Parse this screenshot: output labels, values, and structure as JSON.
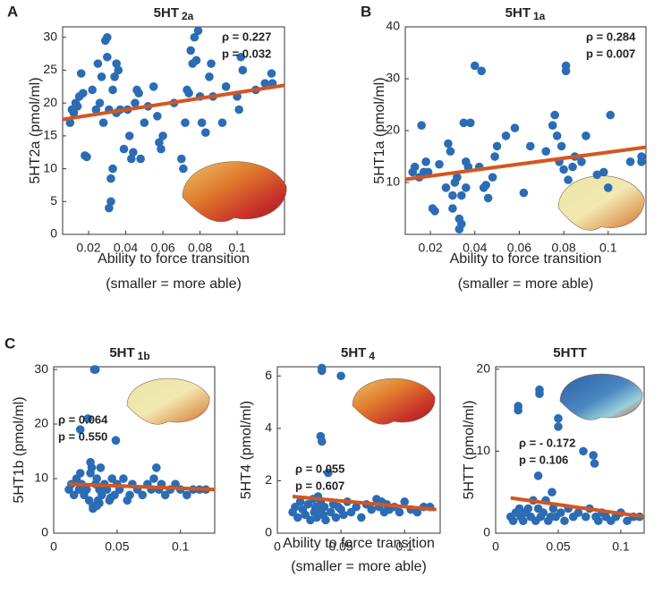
{
  "chart_data": [
    {
      "type": "scatter",
      "panel": "A",
      "title": "5HT",
      "title_sub": "2a",
      "xlabel": [
        "Ability to force transition",
        "(smaller = more able)"
      ],
      "ylabel": "5HT2a (pmol/ml)",
      "annotations": [
        "ρ = 0.227",
        "p = 0.032"
      ],
      "xlim": [
        0.006,
        0.1255
      ],
      "ylim": [
        0,
        31.6
      ],
      "xticks": [
        0.02,
        0.04,
        0.06,
        0.08,
        0.1
      ],
      "yticks": [
        0,
        5,
        10,
        15,
        20,
        25,
        30
      ],
      "points": {
        "color": "#2b6cb5",
        "x": [
          0.01,
          0.011,
          0.012,
          0.013,
          0.014,
          0.015,
          0.016,
          0.017,
          0.018,
          0.019,
          0.022,
          0.024,
          0.025,
          0.026,
          0.027,
          0.028,
          0.029,
          0.03,
          0.03,
          0.031,
          0.031,
          0.032,
          0.032,
          0.033,
          0.033,
          0.034,
          0.035,
          0.035,
          0.036,
          0.037,
          0.039,
          0.041,
          0.042,
          0.043,
          0.044,
          0.045,
          0.046,
          0.047,
          0.048,
          0.05,
          0.052,
          0.055,
          0.057,
          0.058,
          0.059,
          0.06,
          0.066,
          0.07,
          0.071,
          0.072,
          0.073,
          0.074,
          0.075,
          0.076,
          0.077,
          0.078,
          0.079,
          0.08,
          0.081,
          0.083,
          0.085,
          0.086,
          0.087,
          0.092,
          0.094,
          0.1,
          0.101,
          0.102,
          0.103,
          0.11,
          0.115,
          0.1185,
          0.119
        ],
        "y": [
          17,
          19,
          18.5,
          20,
          19.5,
          21,
          24.5,
          21.5,
          12,
          11.8,
          22,
          19,
          26,
          20,
          24,
          17,
          29.5,
          30,
          27,
          19,
          4,
          5,
          8.5,
          10,
          22,
          24,
          18.5,
          26,
          25,
          19,
          13,
          19,
          15,
          11.5,
          12.5,
          20,
          22,
          21.5,
          11.5,
          17,
          19.5,
          22.5,
          18,
          14,
          13,
          15,
          20,
          11.5,
          10,
          17,
          22,
          21.5,
          28,
          26,
          30,
          26.5,
          31,
          21,
          17,
          15.5,
          24,
          26,
          21,
          17,
          22.5,
          21,
          19,
          27,
          25,
          22,
          23,
          24.5,
          23
        ]
      },
      "fit": {
        "color": "#d4561f",
        "x": [
          0.006,
          0.1255
        ],
        "y": [
          17.5,
          22.7
        ]
      }
    },
    {
      "type": "scatter",
      "panel": "B",
      "title": "5HT",
      "title_sub": "1a",
      "xlabel": [
        "Ability to force transition",
        "(smaller = more able)"
      ],
      "ylabel": "5HT1a (pmol/ml)",
      "annotations": [
        "ρ = 0.284",
        "p = 0.007"
      ],
      "xlim": [
        0.0087,
        0.117
      ],
      "ylim": [
        0,
        40
      ],
      "xticks": [
        0.02,
        0.04,
        0.06,
        0.08,
        0.1
      ],
      "yticks": [
        10,
        20,
        30,
        40
      ],
      "points": {
        "color": "#2b6cb5",
        "x": [
          0.012,
          0.013,
          0.015,
          0.016,
          0.017,
          0.018,
          0.019,
          0.021,
          0.022,
          0.024,
          0.027,
          0.028,
          0.029,
          0.03,
          0.03,
          0.031,
          0.032,
          0.033,
          0.033,
          0.034,
          0.034,
          0.035,
          0.036,
          0.036,
          0.037,
          0.038,
          0.04,
          0.042,
          0.043,
          0.044,
          0.045,
          0.046,
          0.048,
          0.049,
          0.05,
          0.054,
          0.058,
          0.062,
          0.065,
          0.072,
          0.075,
          0.076,
          0.077,
          0.078,
          0.079,
          0.08,
          0.081,
          0.081,
          0.082,
          0.084,
          0.085,
          0.088,
          0.09,
          0.095,
          0.098,
          0.1,
          0.101,
          0.11,
          0.115,
          0.115
        ],
        "y": [
          12,
          13,
          11,
          21,
          12,
          14,
          12,
          5,
          4.5,
          13.5,
          9,
          17.5,
          16,
          7.5,
          5,
          10,
          11,
          3,
          1,
          2,
          7.5,
          21.5,
          14,
          9,
          13,
          21.5,
          32.5,
          13,
          31.5,
          9,
          9.5,
          7,
          11,
          15,
          17,
          19,
          20.5,
          8,
          17,
          16,
          21,
          23,
          19,
          14,
          17,
          12.5,
          32.5,
          31.5,
          10.5,
          13,
          15,
          14,
          19,
          11.5,
          12,
          9,
          23,
          14,
          15,
          14
        ]
      },
      "fit": {
        "color": "#d4561f",
        "x": [
          0.0087,
          0.117
        ],
        "y": [
          10.6,
          16.8
        ]
      }
    },
    {
      "type": "scatter",
      "panel": "C",
      "title": "5HT",
      "title_sub": "1b",
      "ylabel": "5HT1b (pmol/ml)",
      "annotations": [
        "ρ = 0.064",
        "p = 0.550"
      ],
      "xlim": [
        0,
        0.127
      ],
      "ylim": [
        0,
        30.5
      ],
      "xticks": [
        0,
        0.05,
        0.1
      ],
      "yticks": [
        0,
        10,
        20,
        30
      ],
      "points": {
        "color": "#2b6cb5",
        "x": [
          0.012,
          0.014,
          0.016,
          0.018,
          0.02,
          0.021,
          0.022,
          0.024,
          0.026,
          0.027,
          0.028,
          0.029,
          0.03,
          0.031,
          0.032,
          0.033,
          0.033,
          0.034,
          0.035,
          0.036,
          0.037,
          0.038,
          0.04,
          0.042,
          0.044,
          0.046,
          0.048,
          0.049,
          0.05,
          0.052,
          0.055,
          0.058,
          0.062,
          0.066,
          0.07,
          0.074,
          0.077,
          0.079,
          0.081,
          0.083,
          0.085,
          0.088,
          0.092,
          0.096,
          0.1,
          0.105,
          0.11,
          0.115,
          0.12,
          0.021,
          0.029,
          0.031,
          0.034,
          0.036,
          0.045,
          0.06
        ],
        "y": [
          8,
          9,
          7,
          10,
          8,
          19,
          9,
          7,
          8,
          21,
          6,
          11,
          12,
          5,
          30,
          30,
          9,
          10,
          6,
          8,
          12,
          7,
          9,
          8,
          6,
          10,
          7,
          17,
          9,
          8,
          10,
          6,
          9,
          8,
          7,
          9,
          8,
          10,
          12,
          8,
          9,
          7,
          8,
          9,
          8,
          7,
          8,
          8,
          8,
          11,
          13,
          4.5,
          5,
          5.5,
          6.5,
          7
        ]
      },
      "fit": {
        "color": "#d4561f",
        "x": [
          0.012,
          0.127
        ],
        "y": [
          9,
          8
        ]
      }
    },
    {
      "type": "scatter",
      "title": "5HT",
      "title_sub": "4",
      "xlabel": [
        "Ability to force transition",
        "(smaller = more able)"
      ],
      "ylabel": "5HT4 (pmol/ml)",
      "annotations": [
        "ρ = 0.055",
        "p = 0.607"
      ],
      "xlim": [
        0,
        0.128
      ],
      "ylim": [
        0,
        6.35
      ],
      "xticks": [
        0,
        0.05,
        0.1
      ],
      "yticks": [
        0,
        2,
        4,
        6
      ],
      "points": {
        "color": "#2b6cb5",
        "x": [
          0.012,
          0.014,
          0.016,
          0.018,
          0.02,
          0.022,
          0.024,
          0.026,
          0.028,
          0.029,
          0.03,
          0.031,
          0.032,
          0.033,
          0.034,
          0.034,
          0.035,
          0.035,
          0.035,
          0.036,
          0.037,
          0.038,
          0.04,
          0.042,
          0.044,
          0.046,
          0.048,
          0.05,
          0.05,
          0.052,
          0.055,
          0.058,
          0.062,
          0.066,
          0.07,
          0.074,
          0.078,
          0.08,
          0.082,
          0.084,
          0.086,
          0.088,
          0.092,
          0.096,
          0.1,
          0.105,
          0.11,
          0.115,
          0.12
        ],
        "y": [
          0.8,
          1.0,
          0.6,
          1.2,
          0.9,
          0.7,
          1.1,
          0.5,
          1.3,
          0.8,
          1.0,
          0.6,
          1.4,
          0.9,
          3.7,
          1.2,
          3.5,
          6.3,
          6.2,
          0.7,
          1.0,
          0.5,
          2.3,
          0.8,
          1.1,
          0.6,
          1.0,
          6.0,
          0.9,
          0.7,
          1.2,
          0.8,
          1.0,
          0.6,
          1.1,
          0.9,
          1.3,
          1.0,
          1.2,
          0.8,
          1.1,
          0.9,
          1.0,
          0.8,
          1.2,
          0.9,
          0.8,
          1.0,
          1.0
        ]
      },
      "fit": {
        "color": "#d4561f",
        "x": [
          0.012,
          0.125
        ],
        "y": [
          1.4,
          0.9
        ]
      }
    },
    {
      "type": "scatter",
      "title": "5HTT",
      "ylabel": "5HTT (pmol/ml)",
      "annotations": [
        "ρ = - 0.172",
        "p = 0.106"
      ],
      "xlim": [
        0,
        0.1186
      ],
      "ylim": [
        0,
        20.3
      ],
      "xticks": [
        0,
        0.05,
        0.1
      ],
      "yticks": [
        0,
        10,
        20
      ],
      "points": {
        "color": "#2b6cb5",
        "x": [
          0.012,
          0.014,
          0.016,
          0.018,
          0.018,
          0.019,
          0.02,
          0.022,
          0.024,
          0.026,
          0.028,
          0.03,
          0.032,
          0.034,
          0.034,
          0.035,
          0.035,
          0.036,
          0.038,
          0.04,
          0.042,
          0.044,
          0.045,
          0.046,
          0.048,
          0.05,
          0.05,
          0.052,
          0.055,
          0.058,
          0.062,
          0.066,
          0.07,
          0.072,
          0.075,
          0.078,
          0.079,
          0.08,
          0.082,
          0.085,
          0.088,
          0.092,
          0.096,
          0.1,
          0.105,
          0.11,
          0.115
        ],
        "y": [
          2,
          1.5,
          2.5,
          15,
          15.5,
          3,
          2,
          1.5,
          2.5,
          3,
          2,
          4,
          1.5,
          7,
          3,
          17.5,
          17,
          2,
          2.5,
          4,
          1.5,
          2,
          5,
          3,
          2,
          14,
          13,
          2.5,
          1.5,
          3,
          2,
          2.5,
          10,
          2,
          3,
          9.5,
          8.5,
          2,
          1.5,
          2.5,
          2,
          1.5,
          2,
          2.5,
          1.5,
          2,
          2
        ]
      },
      "fit": {
        "color": "#d4561f",
        "x": [
          0.012,
          0.1186
        ],
        "y": [
          4.3,
          2.0
        ]
      }
    }
  ]
}
